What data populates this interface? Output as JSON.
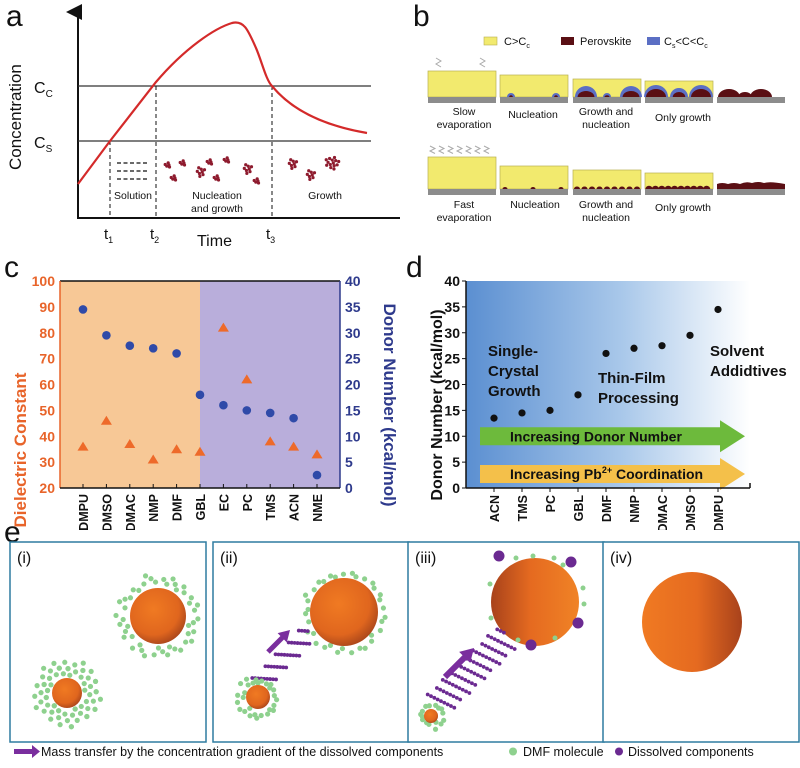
{
  "panels": {
    "a": {
      "letter": "a"
    },
    "b": {
      "letter": "b"
    },
    "c": {
      "letter": "c"
    },
    "d": {
      "letter": "d"
    },
    "e": {
      "letter": "e"
    }
  },
  "colors": {
    "supersaturated_yellow": "#F2EA6E",
    "perovskite": "#5A0F14",
    "intermediate_blue": "#5B6FC4",
    "substrate": "#8C8C8C",
    "curve_red": "#D42A2A",
    "orange_axis": "#E8642A",
    "blue_axis": "#2E3A8C",
    "c_bg_left": "#F7C896",
    "c_bg_right": "#B9AEDB",
    "dmf_green": "#8ED18E",
    "dissolved_purple": "#6B2A91",
    "frame_teal": "#2F7CA0",
    "arrow_green": "#6DBA3C",
    "arrow_yellow": "#F4C04A"
  },
  "chart_data": [
    {
      "id": "a",
      "type": "line",
      "title": "",
      "xlabel": "Time",
      "ylabel": "Concentration",
      "levels": [
        {
          "name": "Cc",
          "label_main": "C",
          "label_sub": "C"
        },
        {
          "name": "Cs",
          "label_main": "C",
          "label_sub": "S"
        }
      ],
      "time_marks": [
        {
          "main": "t",
          "sub": "1"
        },
        {
          "main": "t",
          "sub": "2"
        },
        {
          "main": "t",
          "sub": "3"
        }
      ],
      "regions": [
        {
          "lines": [
            "Solution"
          ]
        },
        {
          "lines": [
            "Nucleation",
            "and growth"
          ]
        },
        {
          "lines": [
            "Growth"
          ]
        }
      ],
      "curve_description": "Concentration rises linearly past Cs (t1) and Cc (t2), peaks, falls back through Cc (t3) and decays toward Cs"
    },
    {
      "id": "b",
      "type": "table",
      "legend": [
        {
          "label_html_main": "C>C",
          "label_sub": "c",
          "color_key": "supersaturated_yellow"
        },
        {
          "label_html_main": "Perovskite",
          "label_sub": "",
          "color_key": "perovskite"
        },
        {
          "label_html_main": "C",
          "label_sub": "s",
          "label_tail": "<C<C",
          "label_tail_sub": "c",
          "color_key": "intermediate_blue"
        }
      ],
      "rows": [
        {
          "name": "slow",
          "stages": [
            [
              "Slow",
              "evaporation"
            ],
            [
              "Nucleation"
            ],
            [
              "Growth and",
              "nucleation"
            ],
            [
              "Only growth"
            ],
            []
          ]
        },
        {
          "name": "fast",
          "stages": [
            [
              "Fast",
              "evaporation"
            ],
            [
              "Nucleation"
            ],
            [
              "Growth and",
              "nucleation"
            ],
            [
              "Only growth"
            ],
            []
          ]
        }
      ]
    },
    {
      "id": "c",
      "type": "scatter",
      "categories": [
        "DMPU",
        "DMSO",
        "DMAC",
        "NMP",
        "DMF",
        "GBL",
        "EC",
        "PC",
        "TMS",
        "ACN",
        "NME"
      ],
      "series": [
        {
          "name": "Dielectric Constant",
          "axis": "left",
          "marker": "triangle",
          "values": [
            36,
            46,
            37,
            31,
            35,
            34,
            82,
            62,
            38,
            36,
            33
          ]
        },
        {
          "name": "Donor Number (kcal/mol)",
          "axis": "right",
          "marker": "circle",
          "values": [
            34.5,
            29.5,
            27.5,
            27,
            26,
            18,
            16,
            15,
            14.5,
            13.5,
            2.5
          ]
        }
      ],
      "ylabel_left": "Dielectric Constant",
      "ylabel_right": "Donor Number (kcal/mol)",
      "ylim_left": [
        20,
        100
      ],
      "ylim_right": [
        0,
        40
      ],
      "yticks_left": [
        20,
        30,
        40,
        50,
        60,
        70,
        80,
        90,
        100
      ],
      "yticks_right": [
        0,
        5,
        10,
        15,
        20,
        25,
        30,
        35,
        40
      ],
      "background_split_after": "GBL"
    },
    {
      "id": "d",
      "type": "scatter",
      "categories": [
        "ACN",
        "TMS",
        "PC",
        "GBL",
        "DMF",
        "NMP",
        "DMAC",
        "DMSO",
        "DMPU"
      ],
      "values": [
        13.5,
        14.5,
        15,
        18,
        26,
        27,
        27.5,
        29.5,
        34.5
      ],
      "ylabel": "Donor Number (kcal/mol)",
      "ylim": [
        0,
        40
      ],
      "yticks": [
        0,
        5,
        10,
        15,
        20,
        25,
        30,
        35,
        40
      ],
      "annotations": [
        {
          "lines": [
            "Single-",
            "Crystal",
            "Growth"
          ]
        },
        {
          "lines": [
            "Thin-Film",
            "Processing"
          ]
        },
        {
          "lines": [
            "Solvent",
            "Addidtives"
          ]
        }
      ],
      "arrows": [
        {
          "label": "Increasing Donor Number"
        },
        {
          "label_main": "Increasing Pb",
          "label_sup": "2+",
          "label_tail": " Coordination"
        }
      ]
    }
  ],
  "panel_e": {
    "frames": [
      "(i)",
      "(ii)",
      "(iii)",
      "(iv)"
    ],
    "legend": {
      "arrow_label": "Mass transfer by the concentration gradient of  the dissolved components",
      "dmf_label": "DMF molecule",
      "dissolved_label": "Dissolved components"
    }
  }
}
